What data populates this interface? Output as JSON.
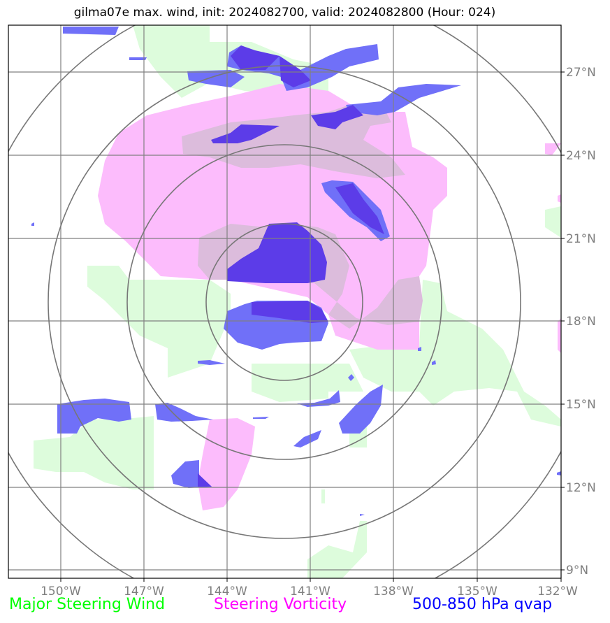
{
  "title": "gilma07e max. wind, init: 2024082700, valid: 2024082800 (Hour: 024)",
  "map": {
    "lon_labels": [
      "150°W",
      "147°W",
      "144°W",
      "141°W",
      "138°W",
      "135°W",
      "132°W"
    ],
    "lat_labels": [
      "27°N",
      "24°N",
      "21°N",
      "18°N",
      "15°N",
      "12°N",
      "9°N"
    ],
    "range_rings": 4,
    "center": {
      "lat": 18.8,
      "lon": -142.1
    }
  },
  "legend": {
    "wind": {
      "label": "Major Steering Wind",
      "color": "#00ff00"
    },
    "vorticity": {
      "label": "Steering Vorticity",
      "color": "#ff00ff"
    },
    "qvap": {
      "label": "500-850 hPa qvap",
      "color": "#0000ff"
    }
  },
  "colors": {
    "wind_fill": "#ddfcdc",
    "vort_fill": "#fcbcfc",
    "vort_dark": "#dcbcdc",
    "qvap_fill": "#7070f8",
    "qvap_dark": "#5c3ce8",
    "grid": "#808080"
  }
}
